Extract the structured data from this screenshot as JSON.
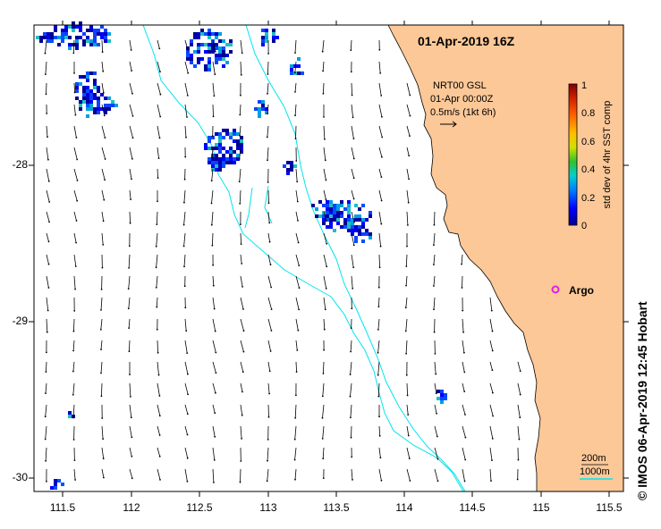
{
  "title": "01-Apr-2019 16Z",
  "vector_legend": {
    "line1": "NRT00 GSL",
    "line2": "01-Apr 00:00Z",
    "line3": "0.5m/s (1kt 6h)"
  },
  "colorbar": {
    "label": "std dev of 4hr SST comp",
    "ticks": [
      "0",
      "0.2",
      "0.4",
      "0.6",
      "0.8",
      "1"
    ]
  },
  "argo": {
    "label": "Argo",
    "color": "#e020e0"
  },
  "bathymetry_legend": {
    "line1": "200m",
    "line2": "1000m",
    "color": "#00e5ee"
  },
  "x_ticks": [
    "111.5",
    "112",
    "112.5",
    "113",
    "113.5",
    "114",
    "114.5",
    "115",
    "115.5"
  ],
  "y_ticks": [
    "-28",
    "-29",
    "-30"
  ],
  "credit": "© IMOS 06-Apr-2019 12:45 Hobart",
  "colors": {
    "land": "#fcc898",
    "contour": "#00e5ee",
    "vector": "#000000"
  }
}
